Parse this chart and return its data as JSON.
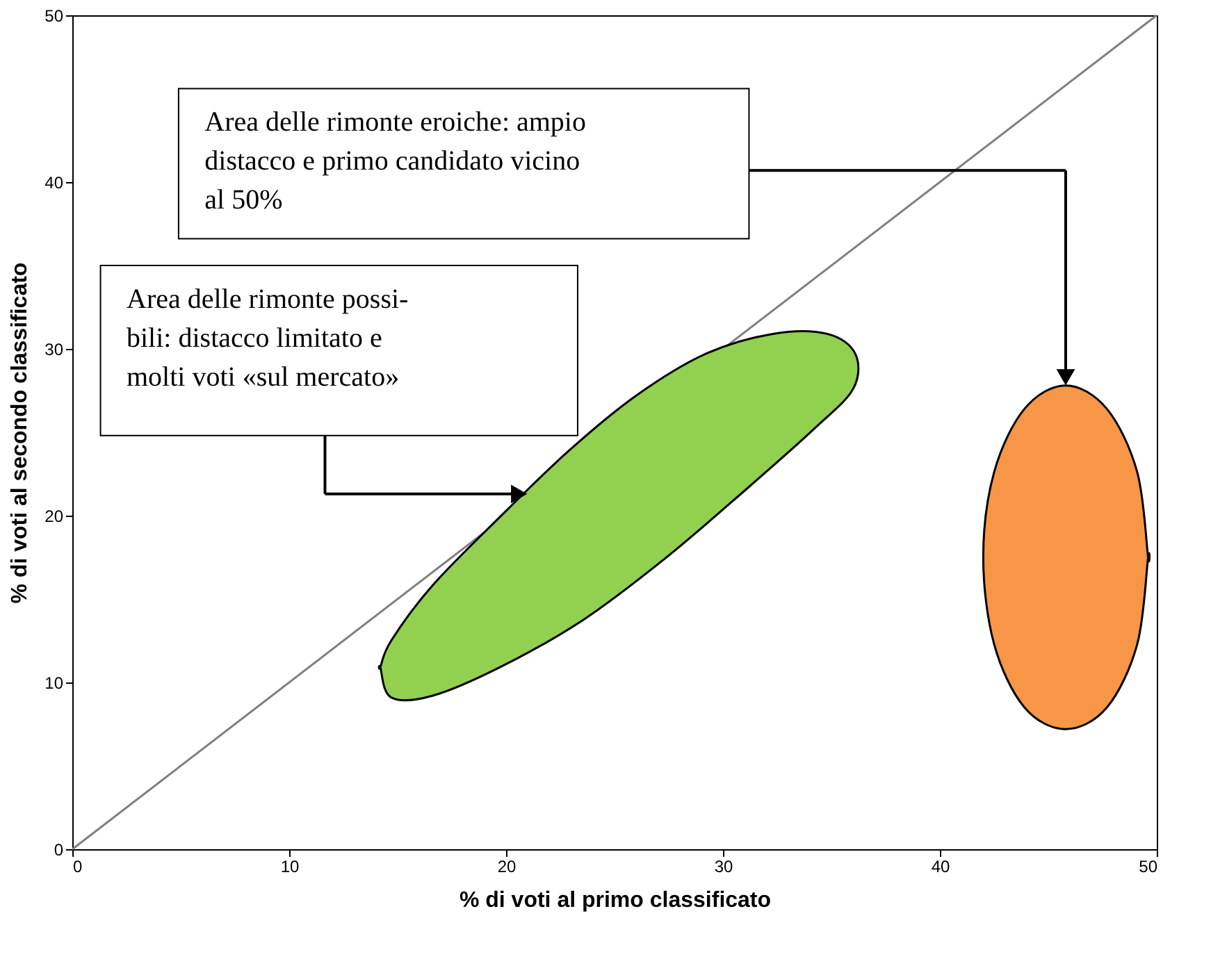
{
  "chart_data": {
    "type": "line",
    "xlabel": "% di voti al primo classificato",
    "ylabel": "% di voti al secondo classificato",
    "xlim": [
      0,
      50
    ],
    "ylim": [
      0,
      50
    ],
    "xticks": [
      0,
      10,
      20,
      30,
      40,
      50
    ],
    "yticks": [
      0,
      10,
      20,
      30,
      40,
      50
    ],
    "grid": false,
    "series": [
      {
        "color": "#7f7f7f",
        "x": [
          0,
          50
        ],
        "values": [
          0,
          50
        ]
      },
      {
        "type": "area",
        "color": "#92d050",
        "x": [
          14.2,
          14.7,
          16.6,
          19.7,
          22.9,
          26.0,
          29.2,
          32.3,
          34.8,
          36.1,
          36.0,
          34.2,
          31.0,
          27.3,
          23.5,
          19.7,
          16.6,
          14.7,
          14.2
        ],
        "values": [
          10.9,
          12.5,
          15.8,
          19.9,
          23.9,
          27.2,
          29.7,
          30.9,
          30.9,
          29.7,
          27.6,
          25.2,
          21.5,
          17.4,
          13.7,
          10.9,
          9.2,
          9.1,
          10.9
        ]
      },
      {
        "type": "area",
        "color": "#f79646",
        "x": [
          49.6,
          49.1,
          47.7,
          45.8,
          43.9,
          42.5,
          42.0,
          42.5,
          43.9,
          45.8,
          47.7,
          49.1,
          49.6
        ],
        "values": [
          17.5,
          22.6,
          26.4,
          27.8,
          26.4,
          22.6,
          17.5,
          12.3,
          8.5,
          7.2,
          8.5,
          12.3,
          17.5
        ]
      }
    ],
    "annotations": [
      "Area delle rimonte eroiche: ampio\ndistacco e primo candidato vicino\nal 50%",
      "Area delle rimonte possi-\nbili: distacco limitato e\nmolti voti «sul mercato»"
    ]
  }
}
